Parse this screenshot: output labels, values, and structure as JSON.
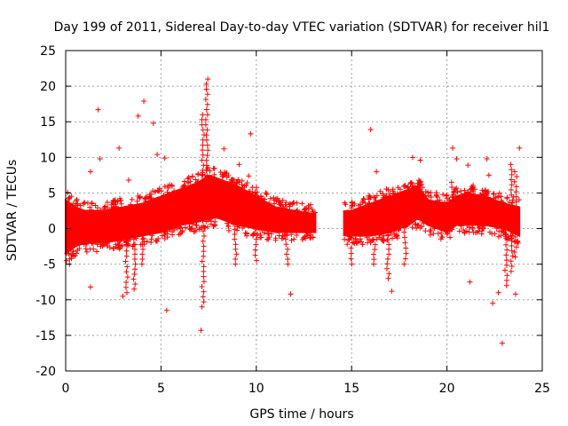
{
  "chart_data": {
    "type": "scatter",
    "title": "Day 199 of 2011, Sidereal Day-to-day VTEC variation (SDTVAR) for receiver hil1",
    "xlabel": "GPS time / hours",
    "ylabel": "SDTVAR / TECUs",
    "xlim": [
      0,
      25
    ],
    "ylim": [
      -20,
      25
    ],
    "x_ticks": [
      0,
      5,
      10,
      15,
      20,
      25
    ],
    "y_ticks": [
      -20,
      -15,
      -10,
      -5,
      0,
      5,
      10,
      15,
      20,
      25
    ],
    "grid": true,
    "marker": "+",
    "colors": {
      "points": "#ff0000",
      "grid": "#a0a0a0",
      "axes": "#000000"
    },
    "data_gap_hours": [
      13.1,
      14.6
    ],
    "series": [
      {
        "name": "SDTVAR",
        "band_envelope": {
          "x": [
            0.0,
            0.5,
            1.0,
            2.0,
            3.0,
            4.0,
            5.0,
            6.0,
            7.0,
            7.5,
            8.0,
            9.0,
            10.0,
            11.0,
            12.0,
            13.1,
            14.8,
            15.0,
            16.0,
            17.0,
            18.0,
            18.5,
            19.0,
            20.0,
            20.5,
            21.0,
            22.0,
            23.0,
            23.8
          ],
          "upper": [
            4.0,
            3.0,
            2.5,
            2.5,
            3.0,
            3.5,
            4.5,
            5.5,
            6.5,
            7.5,
            7.0,
            6.0,
            4.5,
            3.0,
            2.5,
            2.0,
            2.5,
            2.5,
            3.5,
            4.5,
            5.5,
            6.0,
            4.0,
            3.5,
            4.5,
            5.0,
            4.5,
            3.5,
            3.0
          ],
          "lower": [
            -3.5,
            -2.5,
            -2.0,
            -2.0,
            -1.5,
            -1.0,
            -0.5,
            0.5,
            1.0,
            1.5,
            1.5,
            0.5,
            0.0,
            -0.5,
            -0.5,
            -0.5,
            -1.0,
            -1.0,
            -1.0,
            -0.5,
            0.5,
            1.5,
            0.5,
            -0.5,
            0.5,
            0.5,
            0.5,
            0.0,
            -1.0
          ]
        },
        "spikes": [
          {
            "x": 7.4,
            "y_min": 1.0,
            "y_max": 21.0
          },
          {
            "x": 7.2,
            "y_min": -11.0,
            "y_max": 16.0
          },
          {
            "x": 3.2,
            "y_min": -9.0,
            "y_max": 2.0
          },
          {
            "x": 3.6,
            "y_min": -8.5,
            "y_max": 2.0
          },
          {
            "x": 4.0,
            "y_min": -5.0,
            "y_max": 2.0
          },
          {
            "x": 8.9,
            "y_min": -5.0,
            "y_max": 2.0
          },
          {
            "x": 10.0,
            "y_min": -4.5,
            "y_max": 1.5
          },
          {
            "x": 11.6,
            "y_min": -5.0,
            "y_max": 2.0
          },
          {
            "x": 15.0,
            "y_min": -5.0,
            "y_max": 1.0
          },
          {
            "x": 16.2,
            "y_min": -5.0,
            "y_max": 0.5
          },
          {
            "x": 16.9,
            "y_min": -7.0,
            "y_max": 0.5
          },
          {
            "x": 17.8,
            "y_min": -5.0,
            "y_max": 1.0
          },
          {
            "x": 20.3,
            "y_min": 3.0,
            "y_max": 6.5
          },
          {
            "x": 23.1,
            "y_min": -8.0,
            "y_max": 2.0
          },
          {
            "x": 23.4,
            "y_min": -6.0,
            "y_max": 9.0
          },
          {
            "x": 23.6,
            "y_min": -4.0,
            "y_max": 8.0
          }
        ],
        "outliers": [
          {
            "x": 1.7,
            "y": 16.7
          },
          {
            "x": 4.1,
            "y": 17.9
          },
          {
            "x": 3.8,
            "y": 15.8
          },
          {
            "x": 4.6,
            "y": 14.8
          },
          {
            "x": 2.8,
            "y": 11.3
          },
          {
            "x": 1.3,
            "y": 8.0
          },
          {
            "x": 1.8,
            "y": 9.8
          },
          {
            "x": 4.8,
            "y": 10.4
          },
          {
            "x": 5.2,
            "y": 9.9
          },
          {
            "x": 3.3,
            "y": 6.8
          },
          {
            "x": 9.7,
            "y": 13.3
          },
          {
            "x": 8.3,
            "y": 11.2
          },
          {
            "x": 9.1,
            "y": 9.0
          },
          {
            "x": 9.6,
            "y": 7.4
          },
          {
            "x": 1.3,
            "y": -8.2
          },
          {
            "x": 5.3,
            "y": -11.5
          },
          {
            "x": 7.1,
            "y": -14.3
          },
          {
            "x": 11.8,
            "y": -9.2
          },
          {
            "x": 3.0,
            "y": -9.5
          },
          {
            "x": 0.2,
            "y": -5.0
          },
          {
            "x": 16.0,
            "y": 13.9
          },
          {
            "x": 16.3,
            "y": 8.0
          },
          {
            "x": 18.2,
            "y": 10.0
          },
          {
            "x": 18.6,
            "y": 9.6
          },
          {
            "x": 20.3,
            "y": 11.3
          },
          {
            "x": 20.5,
            "y": 9.8
          },
          {
            "x": 21.1,
            "y": 8.9
          },
          {
            "x": 22.1,
            "y": 9.8
          },
          {
            "x": 22.2,
            "y": 7.5
          },
          {
            "x": 23.8,
            "y": 11.3
          },
          {
            "x": 17.1,
            "y": -8.8
          },
          {
            "x": 22.4,
            "y": -10.5
          },
          {
            "x": 22.9,
            "y": -16.1
          },
          {
            "x": 23.6,
            "y": -9.2
          },
          {
            "x": 22.7,
            "y": -9.0
          },
          {
            "x": 21.2,
            "y": -7.5
          }
        ]
      }
    ]
  }
}
